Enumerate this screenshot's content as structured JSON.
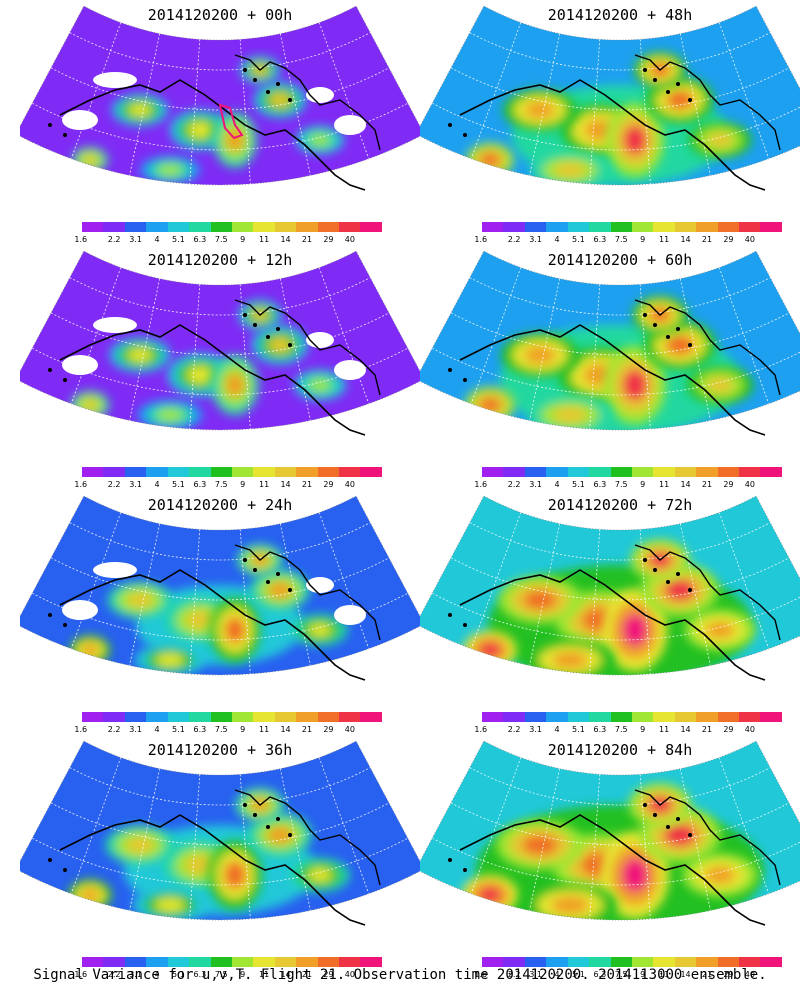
{
  "panels": [
    {
      "title": "2014120200 + 00h",
      "level": 0
    },
    {
      "title": "2014120200 + 48h",
      "level": 4
    },
    {
      "title": "2014120200 + 12h",
      "level": 1
    },
    {
      "title": "2014120200 + 60h",
      "level": 5
    },
    {
      "title": "2014120200 + 24h",
      "level": 2
    },
    {
      "title": "2014120200 + 72h",
      "level": 6
    },
    {
      "title": "2014120200 + 36h",
      "level": 3
    },
    {
      "title": "2014120200 + 84h",
      "level": 7
    }
  ],
  "colorbar": {
    "labels": [
      "1.6",
      "2.2",
      "3.1",
      "4",
      "5.1",
      "6.3",
      "7.5",
      "9",
      "11",
      "14",
      "21",
      "29",
      "40"
    ],
    "colors": [
      "#a020f0",
      "#7f2bf5",
      "#2860f0",
      "#1ea0f0",
      "#20c8d8",
      "#20d8a0",
      "#20c020",
      "#a0e632",
      "#e6e632",
      "#e6c832",
      "#f0a028",
      "#f06e28",
      "#f03246",
      "#f0147a"
    ]
  },
  "caption": "Signal Variance for u,v,T. Flight 21. Observation time 2014120200. 2014113000 ensemble."
}
